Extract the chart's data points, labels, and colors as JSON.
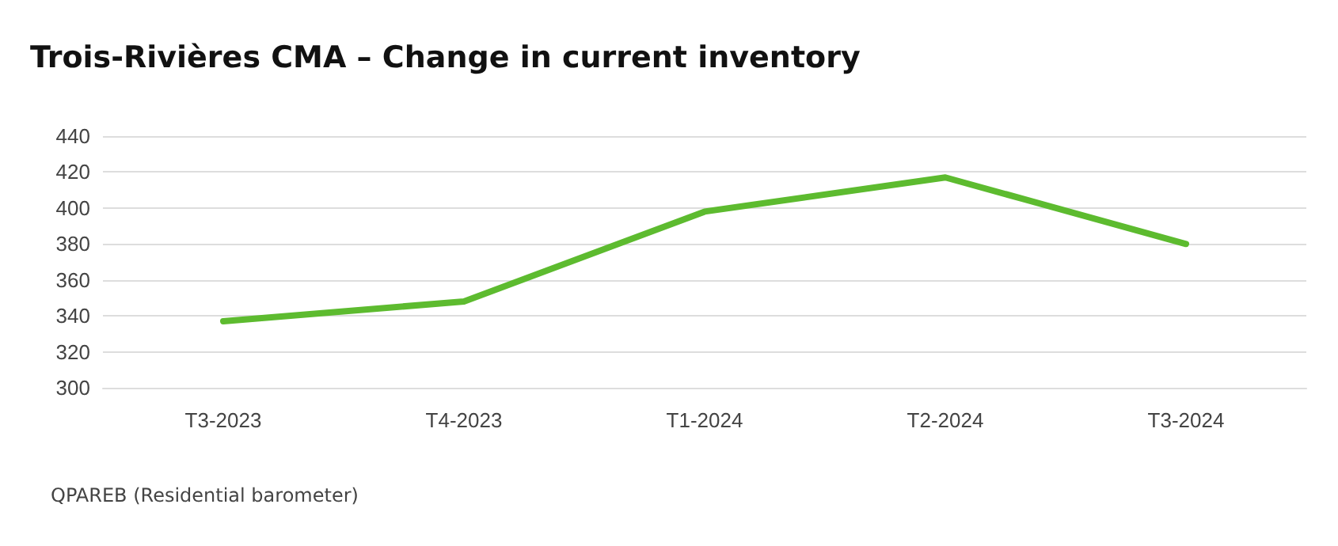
{
  "chart_data": {
    "type": "line",
    "title": "Trois-Rivières CMA – Change in current inventory",
    "categories": [
      "T3-2023",
      "T4-2023",
      "T1-2024",
      "T2-2024",
      "T3-2024"
    ],
    "series": [
      {
        "color": "#5dbb2f",
        "values": [
          337,
          348,
          398,
          417,
          380
        ]
      }
    ],
    "ylim": [
      300,
      440
    ],
    "yticks": [
      300,
      320,
      340,
      360,
      380,
      400,
      420,
      440
    ],
    "grid": "y",
    "marker": "none",
    "line_style": "solid",
    "annotations": [
      "QPAREB (Residential barometer)"
    ]
  }
}
